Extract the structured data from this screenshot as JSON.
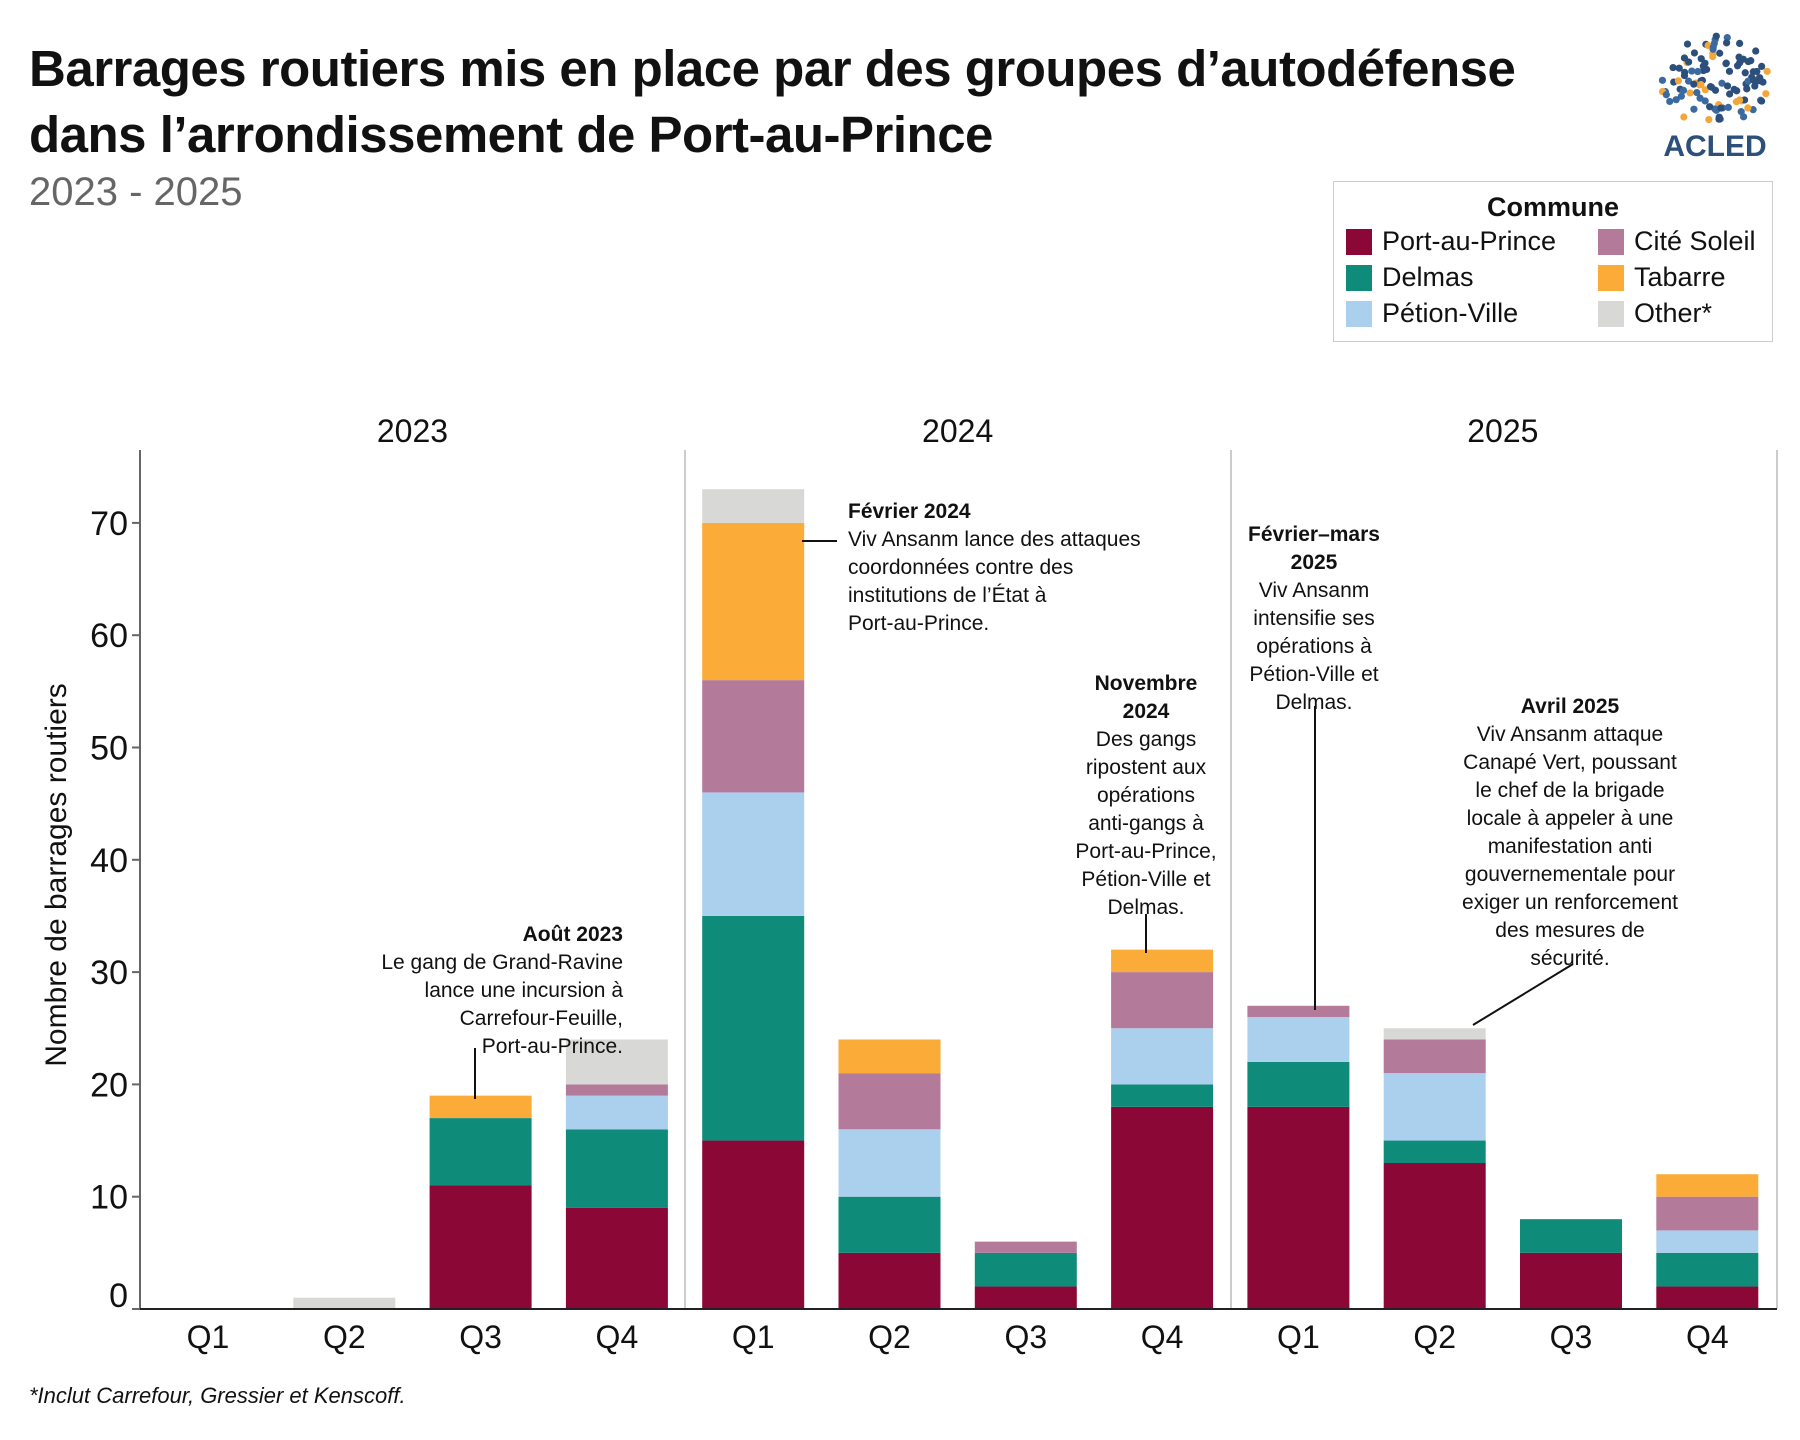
{
  "title": "Barrages routiers mis en place par des groupes d’autodéfense\ndans l’arrondissement de Port-au-Prince",
  "subtitle": "2023 - 2025",
  "logo_text": "ACLED",
  "footnote": "*Inclut Carrefour, Gressier et Kenscoff.",
  "colors": {
    "Port-au-Prince": "#8b0836",
    "Delmas": "#0f8b7a",
    "Pétion-Ville": "#abd0ee",
    "Cité Soleil": "#b47a99",
    "Tabarre": "#fbab37",
    "Other*": "#d8d9d6"
  },
  "chart_data": {
    "type": "bar",
    "stacked": true,
    "title": "Barrages routiers mis en place par des groupes d’autodéfense dans l’arrondissement de Port-au-Prince",
    "subtitle": "2023 - 2025",
    "xlabel": "",
    "ylabel": "Nombre de barrages routiers",
    "ylim": [
      0,
      76
    ],
    "yticks": [
      0,
      10,
      20,
      30,
      40,
      50,
      60,
      70
    ],
    "groups": [
      "2023",
      "2024",
      "2025"
    ],
    "categories": [
      "Q1",
      "Q2",
      "Q3",
      "Q4",
      "Q1",
      "Q2",
      "Q3",
      "Q4",
      "Q1",
      "Q2",
      "Q3",
      "Q4"
    ],
    "legend_title": "Commune",
    "legend_position": "top-right",
    "grid": false,
    "series": [
      {
        "name": "Port-au-Prince",
        "values": [
          0,
          0,
          11,
          9,
          15,
          5,
          2,
          18,
          18,
          13,
          5,
          2
        ]
      },
      {
        "name": "Delmas",
        "values": [
          0,
          0,
          6,
          7,
          20,
          5,
          3,
          2,
          4,
          2,
          3,
          3
        ]
      },
      {
        "name": "Pétion-Ville",
        "values": [
          0,
          0,
          0,
          3,
          11,
          6,
          0,
          5,
          4,
          6,
          0,
          2
        ]
      },
      {
        "name": "Cité Soleil",
        "values": [
          0,
          0,
          0,
          1,
          10,
          5,
          1,
          5,
          1,
          3,
          0,
          3
        ]
      },
      {
        "name": "Tabarre",
        "values": [
          0,
          0,
          2,
          0,
          14,
          3,
          0,
          2,
          0,
          0,
          0,
          2
        ]
      },
      {
        "name": "Other*",
        "values": [
          0,
          1,
          0,
          4,
          3,
          0,
          0,
          0,
          0,
          1,
          0,
          0
        ]
      }
    ],
    "annotations": [
      {
        "title": "Août 2023",
        "text": "Le gang de Grand-Ravine\nlance une incursion à\nCarrefour-Feuille,\nPort-au-Prince."
      },
      {
        "title": "Février 2024",
        "text": "Viv Ansanm lance des attaques\ncoordonnées contre des\ninstitutions de l’État à\nPort-au-Prince."
      },
      {
        "title": "Novembre\n2024",
        "text": "Des gangs\nripostent aux\nopérations\nanti-gangs à\nPort-au-Prince,\nPétion-Ville et\nDelmas."
      },
      {
        "title": "Février–mars\n2025",
        "text": "Viv Ansanm\nintensifie ses\nopérations à\nPétion-Ville et\nDelmas."
      },
      {
        "title": "Avril 2025",
        "text": "Viv Ansanm attaque\nCanapé Vert, poussant\nle chef de la brigade\nlocale à appeler à une\nmanifestation anti\ngouvernementale pour\nexiger un renforcement\ndes mesures  de\nsécurité."
      }
    ]
  }
}
